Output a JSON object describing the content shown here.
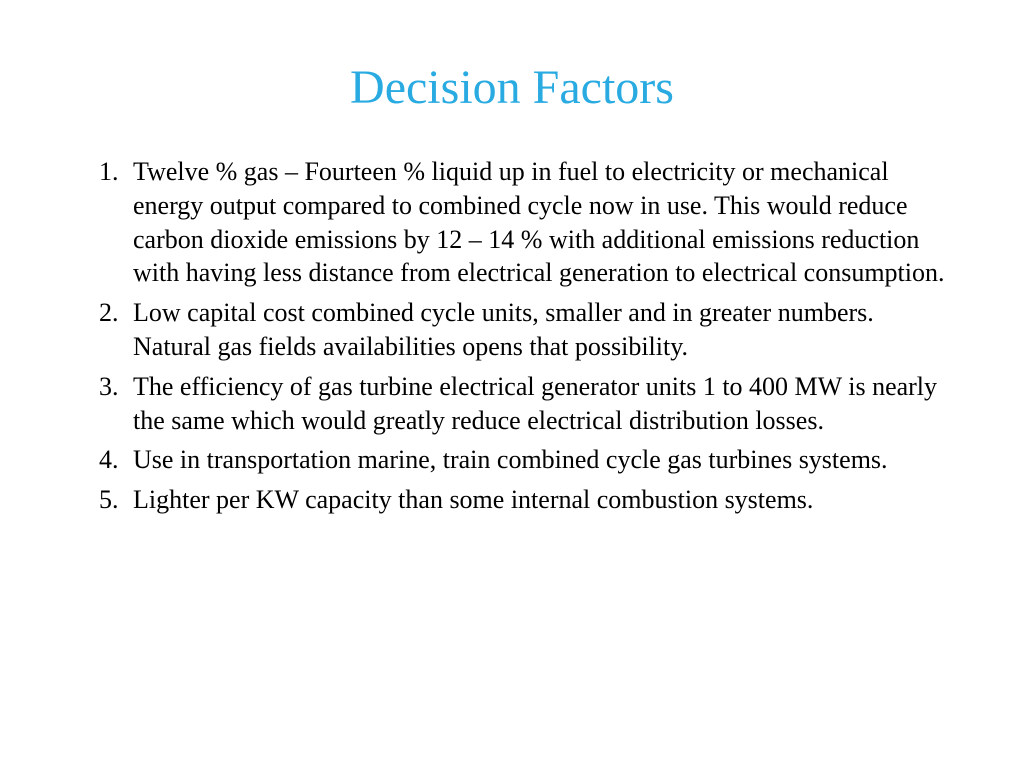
{
  "slide": {
    "title": "Decision Factors",
    "title_color": "#29abe2",
    "body_color": "#000000",
    "background_color": "#ffffff",
    "title_fontsize": 48,
    "body_fontsize": 26,
    "items": [
      "Twelve % gas – Fourteen % liquid up in fuel to electricity or mechanical energy output compared to combined cycle now in use. This would reduce carbon dioxide emissions by 12 – 14 % with additional emissions reduction with having less distance from electrical generation to electrical consumption.",
      "Low capital cost combined cycle units, smaller and in greater numbers. Natural  gas fields availabilities opens that possibility.",
      "The efficiency of gas turbine electrical generator units 1 to 400 MW is nearly the same which would greatly reduce electrical distribution losses.",
      "Use in transportation marine, train combined cycle gas turbines systems.",
      "Lighter per KW capacity than some  internal combustion systems."
    ]
  }
}
